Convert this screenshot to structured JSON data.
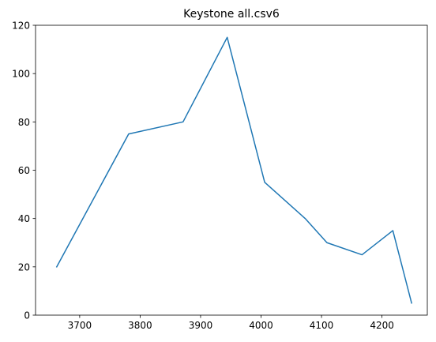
{
  "chart_data": {
    "type": "line",
    "title": "Keystone all.csv6",
    "xlabel": "",
    "ylabel": "",
    "xlim": [
      3627,
      4275
    ],
    "ylim": [
      0,
      120
    ],
    "xticks": [
      3700,
      3800,
      3900,
      4000,
      4100,
      4200
    ],
    "yticks": [
      0,
      20,
      40,
      60,
      80,
      100,
      120
    ],
    "grid": false,
    "series": [
      {
        "color": "#1f77b4",
        "x": [
          3662,
          3781,
          3871,
          3944,
          4006,
          4073,
          4109,
          4167,
          4218,
          4249
        ],
        "y": [
          20,
          75,
          80,
          115,
          55,
          40,
          30,
          25,
          35,
          5
        ]
      }
    ]
  }
}
